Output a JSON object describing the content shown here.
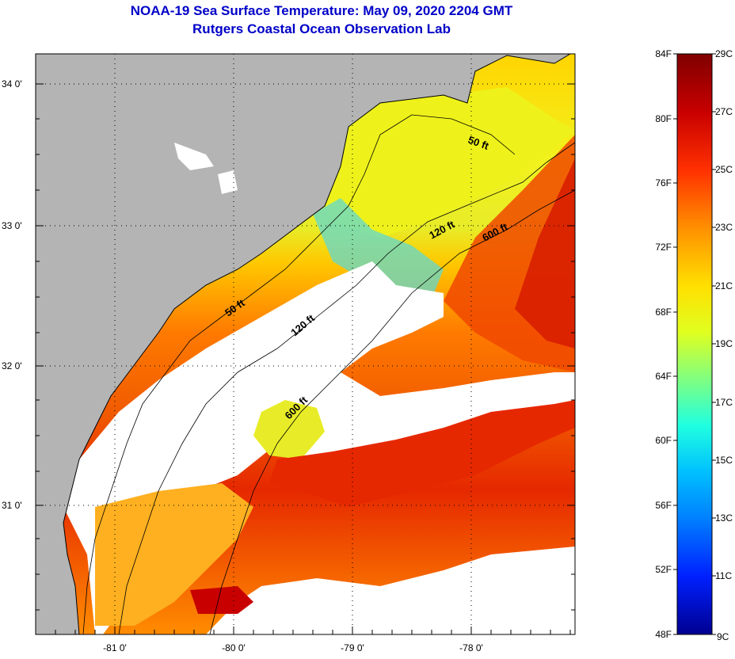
{
  "title": "NOAA-19 Sea Surface Temperature:  May 09, 2020 2204 GMT",
  "subtitle": "Rutgers Coastal Ocean Observation Lab",
  "map": {
    "lon_labels": [
      "-81 0'",
      "-80 0'",
      "-79 0'",
      "-78 0'"
    ],
    "lat_labels": [
      "34 0'",
      "33 0'",
      "32 0'",
      "31 0'"
    ],
    "contour_labels": [
      "50 ft",
      "50 ft",
      "120 ft",
      "120 ft",
      "600 ft",
      "600 ft"
    ]
  },
  "colorbar": {
    "fahrenheit": [
      "84F",
      "80F",
      "76F",
      "72F",
      "68F",
      "64F",
      "60F",
      "56F",
      "52F",
      "48F"
    ],
    "celsius": [
      "29C",
      "27C",
      "25C",
      "23C",
      "21C",
      "19C",
      "17C",
      "15C",
      "13C",
      "11C",
      "9C"
    ]
  },
  "colors": {
    "land": "#b4b4b4",
    "cloud": "#ffffff",
    "title": "#0000c8"
  }
}
